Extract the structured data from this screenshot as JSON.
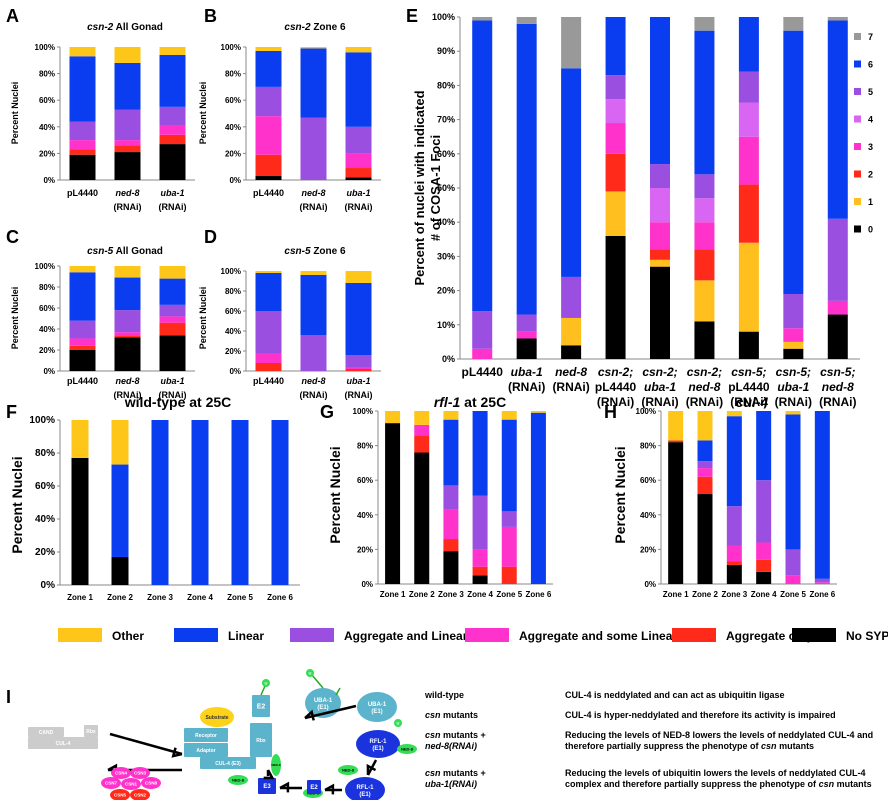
{
  "colors": {
    "no_syp": "#000000",
    "aggregate_only": "#ff2a1a",
    "aggregate_some_linear": "#ff33cc",
    "aggregate_linear": "#9a4fe0",
    "linear": "#0a3cf0",
    "other": "#ffc61a",
    "foci0": "#000000",
    "foci1": "#ffbf1f",
    "foci2": "#ff2a1a",
    "foci3": "#ff33cc",
    "foci4": "#d966f2",
    "foci5": "#9a4fe0",
    "foci6": "#0a3cf0",
    "foci7": "#999999"
  },
  "panel_letters": {
    "A": "A",
    "B": "B",
    "C": "C",
    "D": "D",
    "E": "E",
    "F": "F",
    "G": "G",
    "H": "H",
    "I": "I"
  },
  "legend_bottom": [
    {
      "label": "Other",
      "color": "#ffc61a"
    },
    {
      "label": "Linear",
      "color": "#0a3cf0"
    },
    {
      "label": "Aggregate and Linear",
      "color": "#9a4fe0"
    },
    {
      "label": "Aggregate and some Linear",
      "color": "#ff33cc"
    },
    {
      "label": "Aggregate only",
      "color": "#ff2a1a"
    },
    {
      "label": "No SYP",
      "color": "#000000"
    }
  ],
  "chart_data": [
    {
      "id": "A",
      "type": "bar",
      "stacked": true,
      "title_italic": "csn-2",
      "title_rest": " All Gonad",
      "ylabel": "Percent Nuclei",
      "ylim": [
        0,
        100
      ],
      "yticks": [
        "0%",
        "20%",
        "40%",
        "60%",
        "80%",
        "100%"
      ],
      "categories": [
        [
          "pL4440"
        ],
        [
          "ned-8",
          "(RNAi)"
        ],
        [
          "uba-1",
          "(RNAi)"
        ]
      ],
      "series": [
        {
          "name": "No SYP",
          "values": [
            19,
            21,
            27
          ]
        },
        {
          "name": "Aggregate only",
          "values": [
            4,
            5,
            7
          ]
        },
        {
          "name": "Aggregate and some Linear",
          "values": [
            7,
            4,
            7
          ]
        },
        {
          "name": "Aggregate and Linear",
          "values": [
            14,
            23,
            14
          ]
        },
        {
          "name": "Linear",
          "values": [
            49,
            35,
            39
          ]
        },
        {
          "name": "Other",
          "values": [
            7,
            12,
            6
          ]
        }
      ]
    },
    {
      "id": "B",
      "type": "bar",
      "stacked": true,
      "title_italic": "csn-2",
      "title_rest": " Zone 6",
      "ylabel": "Percent Nuclei",
      "ylim": [
        0,
        100
      ],
      "yticks": [
        "0%",
        "20%",
        "40%",
        "60%",
        "80%",
        "100%"
      ],
      "categories": [
        [
          "pL4440"
        ],
        [
          "ned-8",
          "(RNAi)"
        ],
        [
          "uba-1",
          "(RNAi)"
        ]
      ],
      "series": [
        {
          "name": "No SYP",
          "values": [
            3,
            0,
            2
          ]
        },
        {
          "name": "Aggregate only",
          "values": [
            16,
            0,
            7
          ]
        },
        {
          "name": "Aggregate and some Linear",
          "values": [
            29,
            0,
            11
          ]
        },
        {
          "name": "Aggregate and Linear",
          "values": [
            22,
            47,
            20
          ]
        },
        {
          "name": "Linear",
          "values": [
            27,
            52,
            56
          ]
        },
        {
          "name": "Other",
          "values": [
            3,
            1,
            4
          ]
        }
      ]
    },
    {
      "id": "C",
      "type": "bar",
      "stacked": true,
      "title_italic": "csn-5",
      "title_rest": " All Gonad",
      "ylabel": "Percent Nuclei",
      "ylim": [
        0,
        100
      ],
      "yticks": [
        "0%",
        "20%",
        "40%",
        "60%",
        "80%",
        "100%"
      ],
      "categories": [
        [
          "pL4440"
        ],
        [
          "ned-8",
          "(RNAi)"
        ],
        [
          "uba-1",
          "(RNAi)"
        ]
      ],
      "series": [
        {
          "name": "No SYP",
          "values": [
            20,
            32,
            34
          ]
        },
        {
          "name": "Aggregate only",
          "values": [
            4,
            2,
            12
          ]
        },
        {
          "name": "Aggregate and some Linear",
          "values": [
            7,
            3,
            6
          ]
        },
        {
          "name": "Aggregate and Linear",
          "values": [
            17,
            21,
            11
          ]
        },
        {
          "name": "Linear",
          "values": [
            46,
            31,
            25
          ]
        },
        {
          "name": "Other",
          "values": [
            6,
            11,
            12
          ]
        }
      ]
    },
    {
      "id": "D",
      "type": "bar",
      "stacked": true,
      "title_italic": "csn-5",
      "title_rest": " Zone 6",
      "ylabel": "Percent Nuclei",
      "ylim": [
        0,
        100
      ],
      "yticks": [
        "0%",
        "20%",
        "40%",
        "60%",
        "80%",
        "100%"
      ],
      "categories": [
        [
          "pL4440"
        ],
        [
          "ned-8",
          "(RNAi)"
        ],
        [
          "uba-1",
          "(RNAi)"
        ]
      ],
      "series": [
        {
          "name": "No SYP",
          "values": [
            0,
            0,
            0
          ]
        },
        {
          "name": "Aggregate only",
          "values": [
            8,
            0,
            2
          ]
        },
        {
          "name": "Aggregate and some Linear",
          "values": [
            10,
            0,
            2
          ]
        },
        {
          "name": "Aggregate and Linear",
          "values": [
            42,
            36,
            12
          ]
        },
        {
          "name": "Linear",
          "values": [
            38,
            60,
            72
          ]
        },
        {
          "name": "Other",
          "values": [
            2,
            4,
            12
          ]
        }
      ]
    },
    {
      "id": "E",
      "type": "bar",
      "stacked": true,
      "ylabel": "Percent of nuclei with indicated # of COSA-1 Foci",
      "ylim": [
        0,
        100
      ],
      "yticks": [
        "0%",
        "10%",
        "20%",
        "30%",
        "40%",
        "50%",
        "60%",
        "70%",
        "80%",
        "90%",
        "100%"
      ],
      "categories": [
        [
          "pL4440"
        ],
        [
          "uba-1",
          "(RNAi)"
        ],
        [
          "ned-8",
          "(RNAi)"
        ],
        [
          "csn-2;",
          "pL4440",
          "(RNAi)"
        ],
        [
          "csn-2;",
          "uba-1",
          "(RNAi)"
        ],
        [
          "csn-2;",
          "ned-8",
          "(RNAi)"
        ],
        [
          "csn-5;",
          "pL4440",
          "(RNAi)"
        ],
        [
          "csn-5;",
          "uba-1",
          "(RNAi)"
        ],
        [
          "csn-5;",
          "ned-8",
          "(RNAi)"
        ]
      ],
      "legend": [
        "7",
        "6",
        "5",
        "4",
        "3",
        "2",
        "1",
        "0"
      ],
      "series": [
        {
          "name": "0",
          "values": [
            0,
            6,
            4,
            36,
            27,
            11,
            8,
            3,
            13
          ]
        },
        {
          "name": "1",
          "values": [
            0,
            0,
            8,
            13,
            2,
            12,
            26,
            2,
            0
          ]
        },
        {
          "name": "2",
          "values": [
            0,
            0,
            0,
            11,
            3,
            9,
            17,
            0,
            0
          ]
        },
        {
          "name": "3",
          "values": [
            3,
            2,
            0,
            9,
            8,
            8,
            14,
            4,
            4
          ]
        },
        {
          "name": "4",
          "values": [
            0,
            0,
            0,
            7,
            10,
            7,
            10,
            0,
            0
          ]
        },
        {
          "name": "5",
          "values": [
            11,
            5,
            12,
            7,
            7,
            7,
            9,
            10,
            24
          ]
        },
        {
          "name": "6",
          "values": [
            85,
            85,
            61,
            17,
            43,
            42,
            16,
            77,
            58
          ]
        },
        {
          "name": "7",
          "values": [
            1,
            2,
            15,
            0,
            0,
            4,
            0,
            4,
            1
          ]
        }
      ]
    },
    {
      "id": "F",
      "type": "bar",
      "stacked": true,
      "title": "wild-type at 25C",
      "ylabel": "Percent Nuclei",
      "ylim": [
        0,
        100
      ],
      "yticks": [
        "0%",
        "20%",
        "40%",
        "60%",
        "80%",
        "100%"
      ],
      "categories": [
        "Zone 1",
        "Zone 2",
        "Zone 3",
        "Zone 4",
        "Zone 5",
        "Zone 6"
      ],
      "series": [
        {
          "name": "No SYP",
          "values": [
            77,
            17,
            0,
            0,
            0,
            0
          ]
        },
        {
          "name": "Aggregate only",
          "values": [
            0,
            0,
            0,
            0,
            0,
            0
          ]
        },
        {
          "name": "Aggregate and some Linear",
          "values": [
            0,
            0,
            0,
            0,
            0,
            0
          ]
        },
        {
          "name": "Aggregate and Linear",
          "values": [
            0,
            0,
            0,
            0,
            0,
            0
          ]
        },
        {
          "name": "Linear",
          "values": [
            0,
            56,
            100,
            100,
            100,
            100
          ]
        },
        {
          "name": "Other",
          "values": [
            23,
            27,
            0,
            0,
            0,
            0
          ]
        }
      ]
    },
    {
      "id": "G",
      "type": "bar",
      "stacked": true,
      "title_italic": "rfl-1",
      "title_rest": " at 25C",
      "ylabel": "Percent Nuclei",
      "ylim": [
        0,
        100
      ],
      "yticks": [
        "0%",
        "20%",
        "40%",
        "60%",
        "80%",
        "100%"
      ],
      "categories": [
        "Zone 1",
        "Zone 2",
        "Zone 3",
        "Zone 4",
        "Zone 5",
        "Zone 6"
      ],
      "series": [
        {
          "name": "No SYP",
          "values": [
            93,
            76,
            19,
            5,
            0,
            0
          ]
        },
        {
          "name": "Aggregate only",
          "values": [
            0,
            10,
            7,
            5,
            10,
            0
          ]
        },
        {
          "name": "Aggregate and some Linear",
          "values": [
            0,
            6,
            17,
            10,
            23,
            0
          ]
        },
        {
          "name": "Aggregate and Linear",
          "values": [
            0,
            0,
            14,
            31,
            9,
            0
          ]
        },
        {
          "name": "Linear",
          "values": [
            0,
            0,
            38,
            49,
            53,
            99
          ]
        },
        {
          "name": "Other",
          "values": [
            7,
            8,
            5,
            0,
            5,
            1
          ]
        }
      ]
    },
    {
      "id": "H",
      "type": "bar",
      "stacked": true,
      "title_italic": "cul-4",
      "title_rest": "",
      "ylabel": "Percent Nuclei",
      "ylim": [
        0,
        100
      ],
      "yticks": [
        "0%",
        "20%",
        "40%",
        "60%",
        "80%",
        "100%"
      ],
      "categories": [
        "Zone 1",
        "Zone 2",
        "Zone 3",
        "Zone 4",
        "Zone 5",
        "Zone 6"
      ],
      "series": [
        {
          "name": "No SYP",
          "values": [
            82,
            52,
            11,
            7,
            0,
            0
          ]
        },
        {
          "name": "Aggregate only",
          "values": [
            1,
            10,
            2,
            7,
            0,
            0
          ]
        },
        {
          "name": "Aggregate and some Linear",
          "values": [
            0,
            5,
            9,
            10,
            5,
            1
          ]
        },
        {
          "name": "Aggregate and Linear",
          "values": [
            0,
            4,
            23,
            36,
            15,
            2
          ]
        },
        {
          "name": "Linear",
          "values": [
            0,
            12,
            52,
            40,
            78,
            97
          ]
        },
        {
          "name": "Other",
          "values": [
            17,
            17,
            3,
            0,
            2,
            0
          ]
        }
      ]
    }
  ],
  "diagram": {
    "cand": "CAND",
    "rbx_left": "Rbx",
    "cul4_left": "CUL-4",
    "substrate": "Substrate",
    "receptor": "Receptor",
    "adaptor": "Adaptor",
    "cul4_e3": "CUL-4 (E3)",
    "rbx": "Rbx",
    "e2": "E2",
    "e3": "E3",
    "u": "U",
    "ned8": "NED-8",
    "uba1": "UBA-1",
    "uba1_e1": "(E1)",
    "rfl1": "RFL-1",
    "rfl1_e1": "(E1)",
    "csn": [
      "CSN4",
      "CSN3",
      "CSN7",
      "CSN1",
      "CSN8",
      "CSN5",
      "CSN6",
      "CSN2"
    ]
  },
  "interpretation": [
    {
      "cond_plain": "wild-type",
      "cond_italic": "",
      "cond_italic2": "",
      "text": "CUL-4 is neddylated and can act as ubiquitin ligase",
      "text_italic": "",
      "text_end": ""
    },
    {
      "cond_plain": "",
      "cond_italic": "csn",
      "cond_rest": " mutants",
      "cond_italic2": "",
      "text": "CUL-4 is hyper-neddylated and therefore its activity is impaired",
      "text_italic": "",
      "text_end": ""
    },
    {
      "cond_plain": "",
      "cond_italic": "csn",
      "cond_rest": " mutants +",
      "cond_italic2": "ned-8(RNAi)",
      "text": "Reducing the levels of NED-8 lowers the levels of neddylated CUL-4 and therefore partially suppress the phenotype of ",
      "text_italic": "csn",
      "text_end": " mutants"
    },
    {
      "cond_plain": "",
      "cond_italic": "csn",
      "cond_rest": " mutants +",
      "cond_italic2": "uba-1(RNAi)",
      "text": "Reducing the levels of ubiquitin lowers the levels of neddylated CUL-4 complex and therefore partially suppress the phenotype of ",
      "text_italic": "csn",
      "text_end": " mutants"
    }
  ]
}
